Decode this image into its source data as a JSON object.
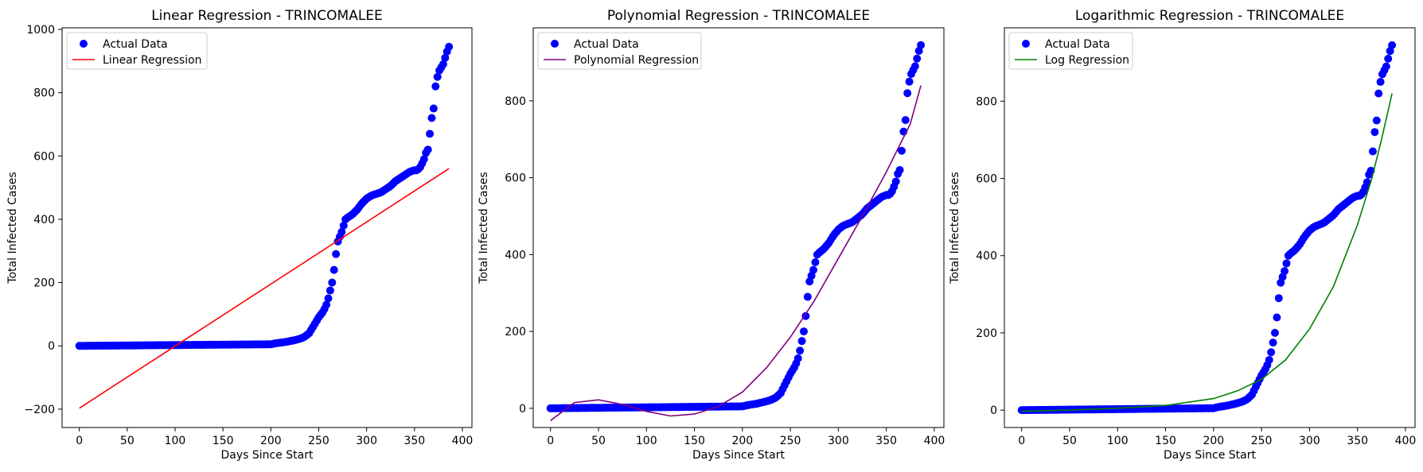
{
  "charts": [
    {
      "title": "Linear Regression - TRINCOMALEE",
      "xlabel": "Days Since Start",
      "ylabel": "Total Infected Cases",
      "legend": {
        "placement": "top-left",
        "points_label": "Actual Data",
        "line_label": "Linear Regression"
      },
      "xticks": [
        "0",
        "50",
        "100",
        "150",
        "200",
        "250",
        "300",
        "350",
        "400"
      ],
      "yticks": [
        "−200",
        "0",
        "200",
        "400",
        "600",
        "800",
        "1000"
      ]
    },
    {
      "title": "Polynomial Regression - TRINCOMALEE",
      "xlabel": "Days Since Start",
      "ylabel": "Total Infected Cases",
      "legend": {
        "placement": "top-left",
        "points_label": "Actual Data",
        "line_label": "Polynomial Regression"
      },
      "xticks": [
        "0",
        "50",
        "100",
        "150",
        "200",
        "250",
        "300",
        "350",
        "400"
      ],
      "yticks": [
        "0",
        "200",
        "400",
        "600",
        "800"
      ]
    },
    {
      "title": "Logarithmic Regression - TRINCOMALEE",
      "xlabel": "Days Since Start",
      "ylabel": "Total Infected Cases",
      "legend": {
        "placement": "top-left",
        "points_label": "Actual Data",
        "line_label": "Log Regression"
      },
      "xticks": [
        "0",
        "50",
        "100",
        "150",
        "200",
        "250",
        "300",
        "350",
        "400"
      ],
      "yticks": [
        "0",
        "200",
        "400",
        "600",
        "800"
      ]
    }
  ],
  "chart_data": [
    {
      "type": "scatter",
      "title": "Linear Regression - TRINCOMALEE",
      "xlabel": "Days Since Start",
      "ylabel": "Total Infected Cases",
      "xlim": [
        -18,
        410
      ],
      "ylim": [
        -258,
        1005
      ],
      "grid": false,
      "legend": "top-left",
      "colors": {
        "points": "#0000ff",
        "line": "#ff0000"
      },
      "actual_data": {
        "name": "Actual Data",
        "x": [
          0,
          200,
          205,
          210,
          215,
          220,
          225,
          230,
          235,
          240,
          245,
          250,
          255,
          258,
          260,
          262,
          264,
          266,
          268,
          270,
          272,
          274,
          276,
          278,
          280,
          285,
          290,
          295,
          300,
          305,
          310,
          315,
          320,
          325,
          330,
          335,
          340,
          345,
          350,
          352,
          355,
          357,
          360,
          362,
          364,
          366,
          368,
          370,
          372,
          374,
          376,
          378,
          380,
          382,
          384,
          386
        ],
        "y": [
          0,
          5,
          8,
          10,
          12,
          15,
          18,
          22,
          28,
          40,
          65,
          90,
          110,
          130,
          150,
          175,
          200,
          240,
          290,
          330,
          345,
          360,
          380,
          400,
          405,
          415,
          430,
          450,
          465,
          475,
          480,
          485,
          495,
          505,
          520,
          530,
          540,
          550,
          555,
          555,
          560,
          570,
          590,
          610,
          620,
          670,
          720,
          750,
          820,
          850,
          870,
          880,
          890,
          910,
          930,
          945
        ]
      },
      "regression": {
        "name": "Linear Regression",
        "x": [
          0,
          386
        ],
        "y": [
          -197,
          560
        ]
      }
    },
    {
      "type": "scatter",
      "title": "Polynomial Regression - TRINCOMALEE",
      "xlabel": "Days Since Start",
      "ylabel": "Total Infected Cases",
      "xlim": [
        -18,
        410
      ],
      "ylim": [
        -50,
        990
      ],
      "grid": false,
      "legend": "top-left",
      "colors": {
        "points": "#0000ff",
        "line": "#800080"
      },
      "actual_data": {
        "name": "Actual Data",
        "x": [
          0,
          200,
          205,
          210,
          215,
          220,
          225,
          230,
          235,
          240,
          245,
          250,
          255,
          258,
          260,
          262,
          264,
          266,
          268,
          270,
          272,
          274,
          276,
          278,
          280,
          285,
          290,
          295,
          300,
          305,
          310,
          315,
          320,
          325,
          330,
          335,
          340,
          345,
          350,
          352,
          355,
          357,
          360,
          362,
          364,
          366,
          368,
          370,
          372,
          374,
          376,
          378,
          380,
          382,
          384,
          386
        ],
        "y": [
          0,
          5,
          8,
          10,
          12,
          15,
          18,
          22,
          28,
          40,
          65,
          90,
          110,
          130,
          150,
          175,
          200,
          240,
          290,
          330,
          345,
          360,
          380,
          400,
          405,
          415,
          430,
          450,
          465,
          475,
          480,
          485,
          495,
          505,
          520,
          530,
          540,
          550,
          555,
          555,
          560,
          570,
          590,
          610,
          620,
          670,
          720,
          750,
          820,
          850,
          870,
          880,
          890,
          910,
          930,
          945
        ]
      },
      "regression": {
        "name": "Polynomial Regression",
        "x": [
          0,
          25,
          50,
          75,
          100,
          125,
          150,
          175,
          200,
          225,
          250,
          275,
          300,
          325,
          350,
          375,
          386
        ],
        "y": [
          -32,
          15,
          22,
          10,
          -8,
          -20,
          -15,
          5,
          42,
          105,
          185,
          280,
          390,
          500,
          615,
          740,
          840
        ]
      }
    },
    {
      "type": "scatter",
      "title": "Logarithmic Regression - TRINCOMALEE",
      "xlabel": "Days Since Start",
      "ylabel": "Total Infected Cases",
      "xlim": [
        -18,
        410
      ],
      "ylim": [
        -45,
        990
      ],
      "grid": false,
      "legend": "top-left",
      "colors": {
        "points": "#0000ff",
        "line": "#008000"
      },
      "actual_data": {
        "name": "Actual Data",
        "x": [
          0,
          200,
          205,
          210,
          215,
          220,
          225,
          230,
          235,
          240,
          245,
          250,
          255,
          258,
          260,
          262,
          264,
          266,
          268,
          270,
          272,
          274,
          276,
          278,
          280,
          285,
          290,
          295,
          300,
          305,
          310,
          315,
          320,
          325,
          330,
          335,
          340,
          345,
          350,
          352,
          355,
          357,
          360,
          362,
          364,
          366,
          368,
          370,
          372,
          374,
          376,
          378,
          380,
          382,
          384,
          386
        ],
        "y": [
          0,
          5,
          8,
          10,
          12,
          15,
          18,
          22,
          28,
          40,
          65,
          90,
          110,
          130,
          150,
          175,
          200,
          240,
          290,
          330,
          345,
          360,
          380,
          400,
          405,
          415,
          430,
          450,
          465,
          475,
          480,
          485,
          495,
          505,
          520,
          530,
          540,
          550,
          555,
          555,
          560,
          570,
          590,
          610,
          620,
          670,
          720,
          750,
          820,
          850,
          870,
          880,
          890,
          910,
          930,
          945
        ]
      },
      "regression": {
        "name": "Log Regression",
        "x": [
          0,
          50,
          100,
          150,
          200,
          225,
          250,
          275,
          300,
          325,
          350,
          365,
          375,
          386
        ],
        "y": [
          -3,
          0,
          5,
          12,
          30,
          50,
          80,
          130,
          210,
          320,
          480,
          600,
          700,
          820
        ]
      }
    }
  ]
}
